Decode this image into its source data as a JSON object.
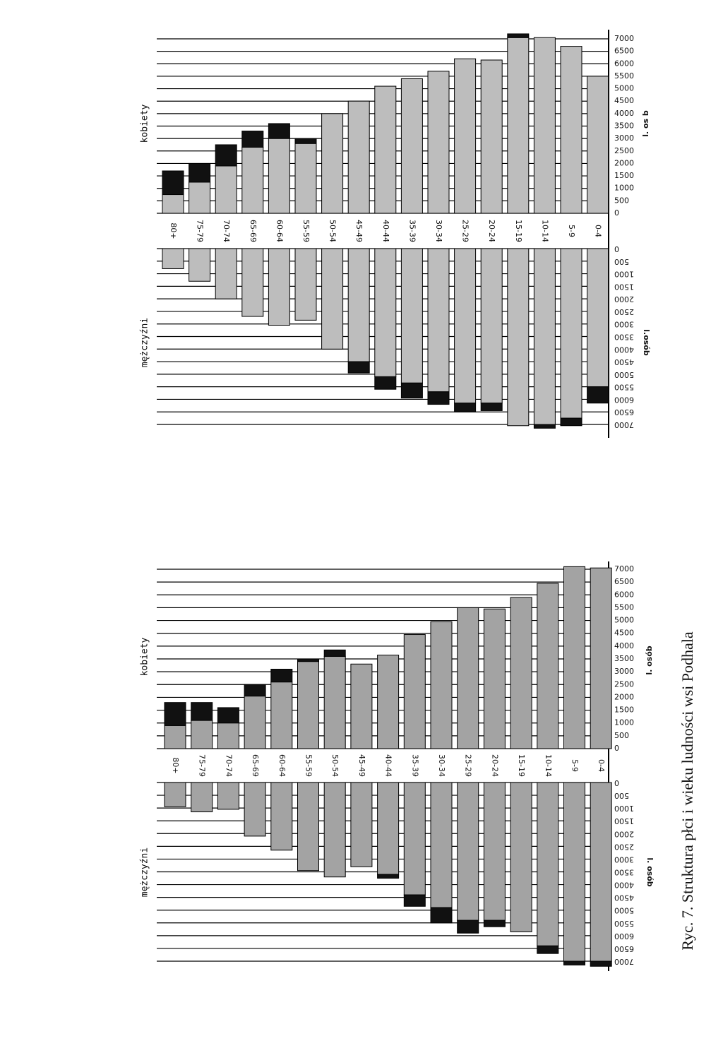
{
  "caption": "Ryc. 7. Struktura płci i wieku ludności wsi Podhala",
  "chart_data": [
    {
      "type": "pyramid",
      "categories": [
        "80+",
        "75-79",
        "70-74",
        "65-69",
        "60-64",
        "55-59",
        "50-54",
        "45-49",
        "40-44",
        "35-39",
        "30-34",
        "25-29",
        "20-24",
        "15-19",
        "10-14",
        "5-9",
        "0-4"
      ],
      "ylim": [
        0,
        7000
      ],
      "yticks": [
        0,
        500,
        1000,
        1500,
        2000,
        2500,
        3000,
        3500,
        4000,
        4500,
        5000,
        5500,
        6000,
        6500,
        7000
      ],
      "series": [
        {
          "label": "kobiety",
          "axis_label": "l. os b",
          "color": "#bdbdbd",
          "excess_color": "#111111",
          "values": [
            750,
            1250,
            1900,
            2650,
            3000,
            2800,
            4000,
            4500,
            5100,
            5400,
            5700,
            6200,
            6150,
            7050,
            7050,
            6700,
            5500
          ],
          "excess_values": [
            950,
            750,
            850,
            650,
            600,
            200,
            0,
            0,
            0,
            0,
            0,
            0,
            0,
            150,
            0,
            0,
            0
          ]
        },
        {
          "label": "mężczyźni",
          "axis_label": "l.osób",
          "color": "#bdbdbd",
          "excess_color": "#111111",
          "values": [
            800,
            1300,
            2000,
            2700,
            3050,
            2850,
            4000,
            4500,
            5100,
            5350,
            5700,
            6150,
            6150,
            7050,
            7000,
            6750,
            5500
          ],
          "excess_values": [
            0,
            0,
            0,
            0,
            0,
            0,
            0,
            450,
            500,
            600,
            500,
            350,
            300,
            0,
            150,
            300,
            650
          ]
        }
      ]
    },
    {
      "type": "pyramid",
      "categories": [
        "80+",
        "75-79",
        "70-74",
        "65-69",
        "60-64",
        "55-59",
        "50-54",
        "45-49",
        "40-44",
        "35-39",
        "30-34",
        "25-29",
        "20-24",
        "15-19",
        "10-14",
        "5-9",
        "0-4"
      ],
      "ylim": [
        0,
        7000
      ],
      "yticks": [
        0,
        500,
        1000,
        1500,
        2000,
        2500,
        3000,
        3500,
        4000,
        4500,
        5000,
        5500,
        6000,
        6500,
        7000
      ],
      "series": [
        {
          "label": "kobiety",
          "axis_label": "l. osób",
          "color": "#a3a3a3",
          "excess_color": "#111111",
          "values": [
            900,
            1100,
            1000,
            2050,
            2600,
            3400,
            3600,
            3300,
            3650,
            4450,
            4950,
            5500,
            5450,
            5900,
            6450,
            7100,
            7050
          ],
          "excess_values": [
            900,
            700,
            600,
            450,
            500,
            100,
            250,
            0,
            0,
            0,
            0,
            0,
            0,
            0,
            0,
            0,
            0
          ]
        },
        {
          "label": "mężczyźni",
          "axis_label": "l. osób",
          "color": "#a3a3a3",
          "excess_color": "#111111",
          "values": [
            950,
            1150,
            1050,
            2100,
            2650,
            3450,
            3700,
            3300,
            3600,
            4400,
            4900,
            5400,
            5400,
            5850,
            6400,
            7000,
            7000
          ],
          "excess_values": [
            0,
            0,
            0,
            0,
            0,
            0,
            0,
            0,
            150,
            450,
            600,
            500,
            250,
            0,
            300,
            150,
            200
          ]
        }
      ]
    }
  ]
}
